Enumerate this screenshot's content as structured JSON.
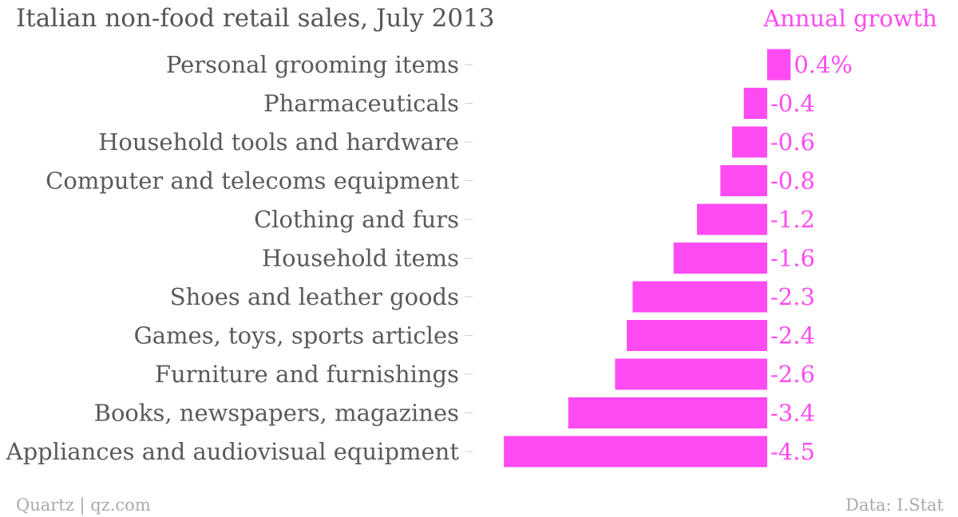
{
  "chart_data": {
    "type": "bar",
    "orientation": "horizontal",
    "title": "Italian non-food retail sales, July 2013",
    "series_label": "Annual growth",
    "categories": [
      "Personal grooming items",
      "Pharmaceuticals",
      "Household tools and hardware",
      "Computer and telecoms equipment",
      "Clothing and furs",
      "Household items",
      "Shoes and leather goods",
      "Games, toys, sports articles",
      "Furniture and furnishings",
      "Books, newspapers, magazines",
      "Appliances and audiovisual equipment"
    ],
    "values": [
      0.4,
      -0.4,
      -0.6,
      -0.8,
      -1.2,
      -1.6,
      -2.3,
      -2.4,
      -2.6,
      -3.4,
      -4.5
    ],
    "value_labels": [
      "0.4%",
      "-0.4",
      "-0.6",
      "-0.8",
      "-1.2",
      "-1.6",
      "-2.3",
      "-2.4",
      "-2.6",
      "-3.4",
      "-4.5"
    ],
    "color": "#ff4bf1",
    "grid": false
  },
  "footer": {
    "source_left": "Quartz | qz.com",
    "source_right": "Data: I.Stat"
  }
}
